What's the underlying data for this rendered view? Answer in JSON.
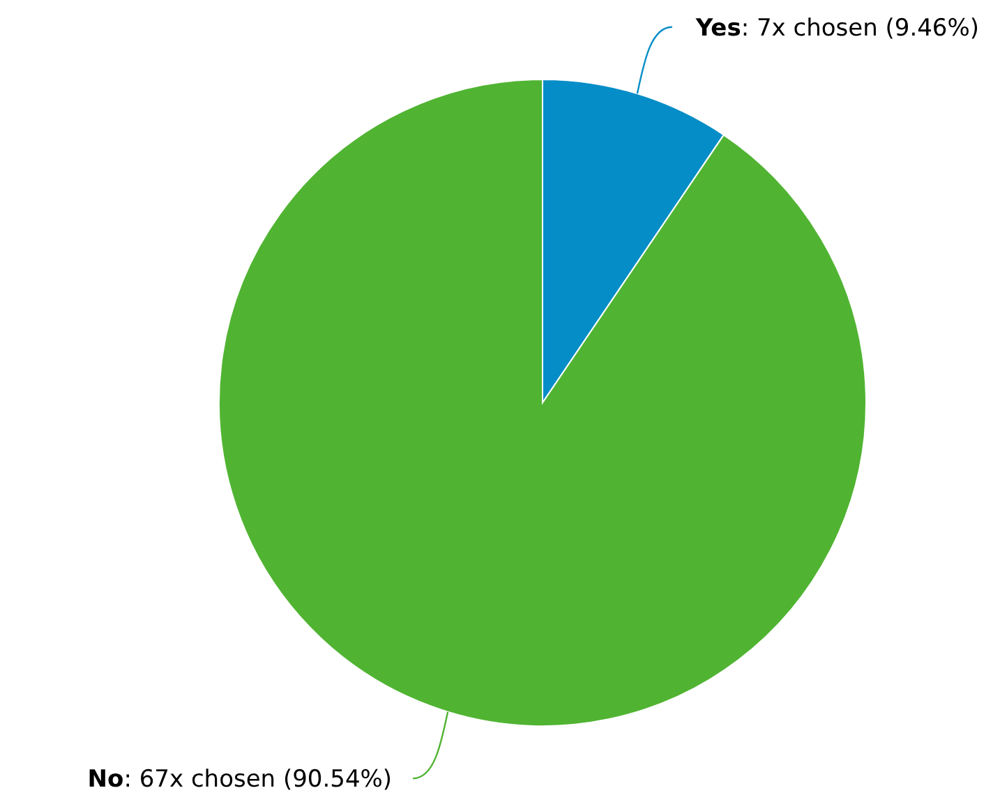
{
  "chart_data": {
    "type": "pie",
    "categories": [
      "Yes",
      "No"
    ],
    "values": [
      7,
      67
    ],
    "colors": [
      "#058dc7",
      "#50b432"
    ],
    "value_labels": [
      ": 7x chosen (9.46%)",
      ": 67x chosen (90.54%)"
    ],
    "legend": false
  }
}
